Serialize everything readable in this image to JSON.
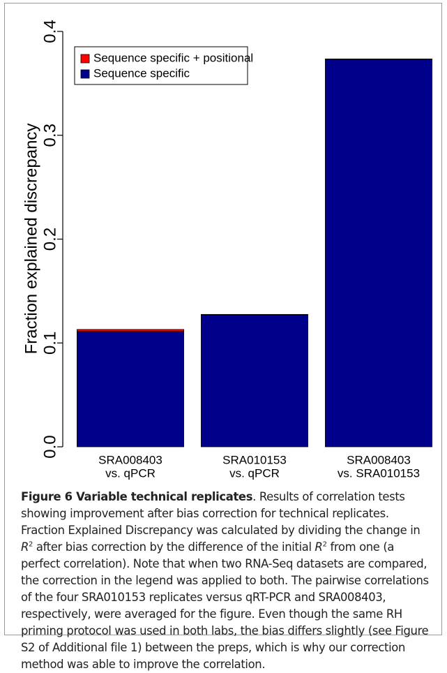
{
  "chart_data": {
    "type": "bar",
    "stacked": true,
    "ylabel": "Fraction explained discrepancy",
    "categories": [
      [
        "SRA008403",
        "vs. qPCR"
      ],
      [
        "SRA010153",
        "vs. qPCR"
      ],
      [
        "SRA008403",
        "vs. SRA010153"
      ]
    ],
    "series": [
      {
        "name": "Sequence specific",
        "color": "#00008b",
        "values": [
          0.111,
          0.127,
          0.373
        ]
      },
      {
        "name": "Sequence specific + positional",
        "color": "#ff0000",
        "values": [
          0.002,
          0.0005,
          0.0005
        ]
      }
    ],
    "legend_order": [
      1,
      0
    ],
    "ylim": [
      0,
      0.4
    ],
    "yticks": [
      {
        "value": 0,
        "label": "0.0"
      },
      0.1,
      0.2,
      0.3,
      0.4
    ]
  },
  "caption": {
    "label": "Figure 6 Variable technical replicates",
    "body": [
      ". Results of correlation tests showing improvement after bias correction for technical replicates. Fraction Explained Discrepancy was calculated by dividing the change in ",
      "R",
      "2",
      " after bias correction by the difference of the initial ",
      "R",
      "2",
      " from one (a perfect correlation). Note that when two RNA-Seq datasets are compared, the correction in the legend was applied to both. The pairwise correlations of the four SRA010153 replicates versus qRT-PCR and SRA008403, respectively, were averaged for the figure. Even though the same RH priming protocol was used in both labs, the bias differs slightly (see Figure S2 of Additional file 1) between the preps, which is why our correction method was able to improve the correlation."
    ]
  }
}
